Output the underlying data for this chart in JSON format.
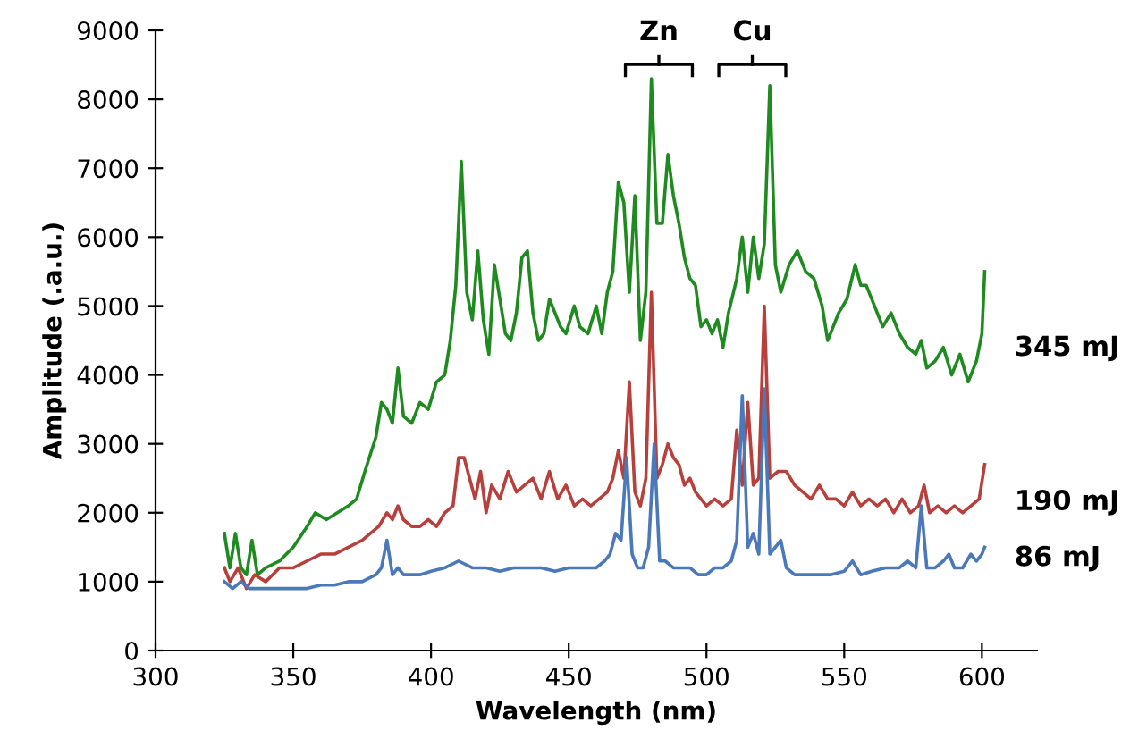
{
  "chart_data": {
    "type": "line",
    "xlabel": "Wavelength (nm)",
    "ylabel": "Amplitude (.a.u.)",
    "xlim": [
      300,
      620
    ],
    "xticks": [
      300,
      350,
      400,
      450,
      500,
      550,
      600
    ],
    "ylim": [
      0,
      9000
    ],
    "yticks": [
      0,
      1000,
      2000,
      3000,
      4000,
      5000,
      6000,
      7000,
      8000,
      9000
    ],
    "grid": false,
    "legend": false,
    "marker": "none",
    "line_style": "solid",
    "annotations": [
      "Zn",
      "Cu"
    ],
    "series": [
      {
        "name": "345 mJ",
        "color": "#1f8a1f",
        "x": [
          325,
          327,
          329,
          331,
          333,
          335,
          337,
          340,
          345,
          350,
          355,
          358,
          362,
          366,
          370,
          373,
          376,
          380,
          382,
          384,
          386,
          388,
          390,
          393,
          396,
          399,
          402,
          405,
          407,
          409,
          411,
          413,
          415,
          417,
          419,
          421,
          423,
          425,
          427,
          429,
          431,
          433,
          435,
          437,
          439,
          441,
          443,
          445,
          447,
          449,
          452,
          454,
          457,
          460,
          462,
          464,
          466,
          468,
          470,
          472,
          474,
          476,
          478,
          480,
          482,
          484,
          486,
          488,
          490,
          492,
          494,
          496,
          498,
          500,
          502,
          504,
          506,
          508,
          511,
          513,
          515,
          517,
          519,
          521,
          523,
          525,
          527,
          530,
          533,
          536,
          539,
          542,
          544,
          546,
          548,
          551,
          554,
          556,
          558,
          561,
          564,
          567,
          570,
          573,
          576,
          578,
          580,
          583,
          586,
          589,
          592,
          595,
          598,
          600,
          601
        ],
        "values": [
          1700,
          1200,
          1700,
          1200,
          1100,
          1600,
          1100,
          1200,
          1300,
          1500,
          1800,
          2000,
          1900,
          2000,
          2100,
          2200,
          2600,
          3100,
          3600,
          3500,
          3300,
          4100,
          3400,
          3300,
          3600,
          3500,
          3900,
          4000,
          4500,
          5300,
          7100,
          5200,
          4800,
          5800,
          4800,
          4300,
          5600,
          5100,
          4600,
          4500,
          4900,
          5700,
          5800,
          4900,
          4500,
          4600,
          5100,
          4900,
          4700,
          4600,
          5000,
          4700,
          4600,
          5000,
          4600,
          5200,
          5500,
          6800,
          6500,
          5200,
          6600,
          4500,
          5200,
          8300,
          6200,
          6200,
          7200,
          6600,
          6200,
          5700,
          5400,
          5300,
          4700,
          4800,
          4600,
          4800,
          4400,
          4900,
          5400,
          6000,
          5200,
          6000,
          5400,
          5900,
          8200,
          5600,
          5200,
          5600,
          5800,
          5500,
          5400,
          5000,
          4500,
          4700,
          4900,
          5100,
          5600,
          5300,
          5300,
          5000,
          4700,
          4900,
          4600,
          4400,
          4300,
          4500,
          4100,
          4200,
          4400,
          4000,
          4300,
          3900,
          4200,
          4600,
          5500
        ]
      },
      {
        "name": "190 mJ",
        "color": "#b8403c",
        "x": [
          325,
          327,
          330,
          333,
          336,
          340,
          345,
          350,
          355,
          360,
          365,
          370,
          375,
          378,
          381,
          384,
          386,
          388,
          390,
          393,
          396,
          399,
          402,
          405,
          408,
          410,
          412,
          414,
          416,
          418,
          420,
          422,
          425,
          428,
          431,
          434,
          437,
          440,
          443,
          446,
          449,
          452,
          455,
          458,
          461,
          464,
          466,
          468,
          470,
          472,
          474,
          476,
          478,
          480,
          482,
          484,
          486,
          488,
          490,
          492,
          494,
          496,
          498,
          500,
          503,
          506,
          509,
          511,
          513,
          515,
          517,
          519,
          521,
          523,
          526,
          529,
          532,
          535,
          538,
          541,
          544,
          547,
          550,
          553,
          556,
          559,
          562,
          565,
          568,
          571,
          574,
          577,
          579,
          581,
          584,
          587,
          590,
          593,
          596,
          599,
          601
        ],
        "values": [
          1200,
          1000,
          1200,
          900,
          1100,
          1000,
          1200,
          1200,
          1300,
          1400,
          1400,
          1500,
          1600,
          1700,
          1800,
          2000,
          1900,
          2100,
          1900,
          1800,
          1800,
          1900,
          1800,
          2000,
          2100,
          2800,
          2800,
          2500,
          2200,
          2600,
          2000,
          2400,
          2200,
          2600,
          2300,
          2400,
          2500,
          2200,
          2600,
          2200,
          2400,
          2100,
          2200,
          2100,
          2200,
          2300,
          2500,
          2900,
          2500,
          3900,
          2300,
          2100,
          2500,
          5200,
          2500,
          2700,
          3000,
          2800,
          2700,
          2400,
          2500,
          2300,
          2200,
          2100,
          2200,
          2100,
          2200,
          3200,
          2400,
          3600,
          2400,
          2500,
          5000,
          2500,
          2600,
          2600,
          2400,
          2300,
          2200,
          2400,
          2200,
          2200,
          2100,
          2300,
          2100,
          2200,
          2100,
          2200,
          2000,
          2200,
          2000,
          2100,
          2400,
          2000,
          2100,
          2000,
          2100,
          2000,
          2100,
          2200,
          2700
        ]
      },
      {
        "name": "86 mJ",
        "color": "#4a78b8",
        "x": [
          325,
          328,
          331,
          334,
          337,
          340,
          345,
          350,
          355,
          360,
          365,
          370,
          375,
          380,
          382,
          384,
          386,
          388,
          390,
          393,
          396,
          400,
          405,
          410,
          415,
          420,
          425,
          430,
          435,
          440,
          445,
          450,
          455,
          460,
          463,
          465,
          467,
          469,
          471,
          473,
          475,
          477,
          479,
          481,
          483,
          485,
          488,
          491,
          494,
          497,
          500,
          503,
          506,
          509,
          511,
          513,
          515,
          517,
          519,
          521,
          523,
          525,
          527,
          529,
          532,
          536,
          540,
          545,
          550,
          553,
          556,
          560,
          565,
          570,
          573,
          576,
          578,
          580,
          583,
          586,
          588,
          590,
          593,
          596,
          598,
          600,
          601
        ],
        "values": [
          1000,
          900,
          1000,
          900,
          900,
          900,
          900,
          900,
          900,
          950,
          950,
          1000,
          1000,
          1100,
          1200,
          1600,
          1100,
          1200,
          1100,
          1100,
          1100,
          1150,
          1200,
          1300,
          1200,
          1200,
          1150,
          1200,
          1200,
          1200,
          1150,
          1200,
          1200,
          1200,
          1300,
          1400,
          1700,
          1600,
          2800,
          1400,
          1200,
          1200,
          1500,
          3000,
          1300,
          1300,
          1200,
          1200,
          1200,
          1100,
          1100,
          1200,
          1200,
          1300,
          1600,
          3700,
          1500,
          1700,
          1400,
          3800,
          1400,
          1500,
          1600,
          1200,
          1100,
          1100,
          1100,
          1100,
          1150,
          1300,
          1100,
          1150,
          1200,
          1200,
          1300,
          1200,
          2100,
          1200,
          1200,
          1300,
          1400,
          1200,
          1200,
          1400,
          1300,
          1400,
          1500
        ]
      }
    ]
  }
}
